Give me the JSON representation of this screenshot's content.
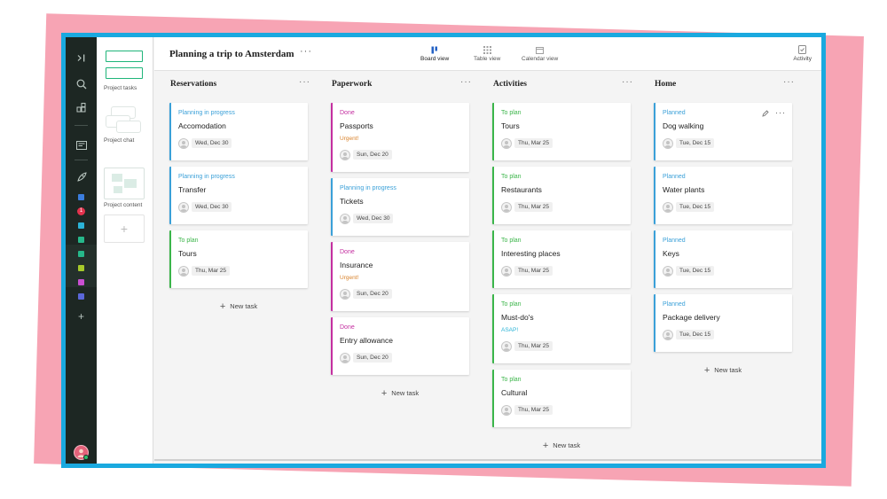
{
  "header": {
    "title": "Planning a trip to Amsterdam",
    "more": "···",
    "views": [
      {
        "label": "Board view",
        "icon": "board-icon"
      },
      {
        "label": "Table view",
        "icon": "table-icon"
      },
      {
        "label": "Calendar view",
        "icon": "calendar-icon"
      }
    ],
    "activity": "Activity"
  },
  "sidebar": {
    "items": [
      {
        "label": "Project tasks"
      },
      {
        "label": "Project chat"
      },
      {
        "label": "Project content"
      }
    ],
    "add": "+"
  },
  "rail": {
    "badge": "1",
    "add": "+",
    "project_colors": [
      "#3b7ddd",
      "#2bb3d6",
      "#26b88a",
      "#a6c92a",
      "#c94fd1",
      "#5a67d8"
    ]
  },
  "new_task_label": "New task",
  "status_colors": {
    "Planning in progress": "#3aa0d8",
    "To plan": "#3bb54a",
    "Done": "#c42fa0",
    "Planned": "#3aa0d8"
  },
  "columns": [
    {
      "title": "Reservations",
      "cards": [
        {
          "status": "Planning in progress",
          "name": "Accomodation",
          "date": "Wed, Dec 30"
        },
        {
          "status": "Planning in progress",
          "name": "Transfer",
          "date": "Wed, Dec 30"
        },
        {
          "status": "To plan",
          "name": "Tours",
          "date": "Thu, Mar 25"
        }
      ]
    },
    {
      "title": "Paperwork",
      "cards": [
        {
          "status": "Done",
          "name": "Passports",
          "flag": "Urgent!",
          "date": "Sun, Dec 20"
        },
        {
          "status": "Planning in progress",
          "name": "Tickets",
          "date": "Wed, Dec 30"
        },
        {
          "status": "Done",
          "name": "Insurance",
          "flag": "Urgent!",
          "date": "Sun, Dec 20"
        },
        {
          "status": "Done",
          "name": "Entry allowance",
          "date": "Sun, Dec 20"
        }
      ]
    },
    {
      "title": "Activities",
      "cards": [
        {
          "status": "To plan",
          "name": "Tours",
          "date": "Thu, Mar 25"
        },
        {
          "status": "To plan",
          "name": "Restaurants",
          "date": "Thu, Mar 25"
        },
        {
          "status": "To plan",
          "name": "Interesting places",
          "date": "Thu, Mar 25"
        },
        {
          "status": "To plan",
          "name": "Must-do's",
          "flag": "ASAP!",
          "date": "Thu, Mar 25"
        },
        {
          "status": "To plan",
          "name": "Cultural",
          "date": "Thu, Mar 25"
        }
      ]
    },
    {
      "title": "Home",
      "cards": [
        {
          "status": "Planned",
          "name": "Dog walking",
          "date": "Tue, Dec 15",
          "hover": true
        },
        {
          "status": "Planned",
          "name": "Water plants",
          "date": "Tue, Dec 15"
        },
        {
          "status": "Planned",
          "name": "Keys",
          "date": "Tue, Dec 15"
        },
        {
          "status": "Planned",
          "name": "Package delivery",
          "date": "Tue, Dec 15"
        }
      ]
    }
  ],
  "flag_colors": {
    "Urgent!": "#d9822b",
    "ASAP!": "#2bb3d6"
  }
}
